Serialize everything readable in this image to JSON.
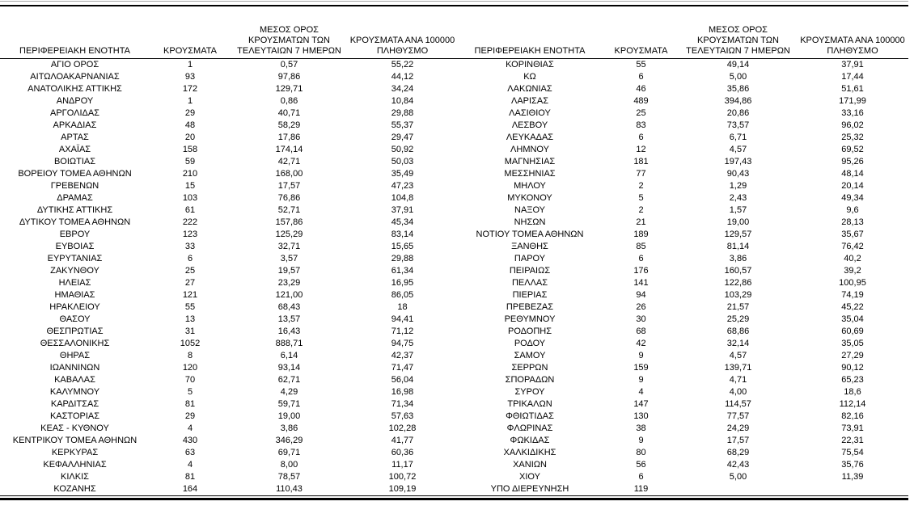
{
  "colors": {
    "background": "#ffffff",
    "text": "#000000",
    "rule_dark": "#000000",
    "rule_light": "#a6a6a6"
  },
  "table": {
    "headers": {
      "region": "ΠΕΡΙΦΕΡΕΙΑΚΗ ΕΝΟΤΗΤΑ",
      "cases": "ΚΡΟΥΣΜΑΤΑ",
      "avg7": "ΜΕΣΟΣ ΟΡΟΣ\nΚΡΟΥΣΜΑΤΩΝ ΤΩΝ\nΤΕΛΕΥΤΑΙΩΝ 7 ΗΜΕΡΩΝ",
      "per100k": "ΚΡΟΥΣΜΑΤΑ ΑΝΑ 100000\nΠΛΗΘΥΣΜΟ"
    },
    "left_rows": [
      {
        "region": "ΑΓΙΟ ΟΡΟΣ",
        "cases": "1",
        "avg7": "0,57",
        "per100k": "55,22"
      },
      {
        "region": "ΑΙΤΩΛΟΑΚΑΡΝΑΝΙΑΣ",
        "cases": "93",
        "avg7": "97,86",
        "per100k": "44,12"
      },
      {
        "region": "ΑΝΑΤΟΛΙΚΗΣ ΑΤΤΙΚΗΣ",
        "cases": "172",
        "avg7": "129,71",
        "per100k": "34,24"
      },
      {
        "region": "ΑΝΔΡΟΥ",
        "cases": "1",
        "avg7": "0,86",
        "per100k": "10,84"
      },
      {
        "region": "ΑΡΓΟΛΙΔΑΣ",
        "cases": "29",
        "avg7": "40,71",
        "per100k": "29,88"
      },
      {
        "region": "ΑΡΚΑΔΙΑΣ",
        "cases": "48",
        "avg7": "58,29",
        "per100k": "55,37"
      },
      {
        "region": "ΑΡΤΑΣ",
        "cases": "20",
        "avg7": "17,86",
        "per100k": "29,47"
      },
      {
        "region": "ΑΧΑΪΑΣ",
        "cases": "158",
        "avg7": "174,14",
        "per100k": "50,92"
      },
      {
        "region": "ΒΟΙΩΤΙΑΣ",
        "cases": "59",
        "avg7": "42,71",
        "per100k": "50,03"
      },
      {
        "region": "ΒΟΡΕΙΟΥ ΤΟΜΕΑ ΑΘΗΝΩΝ",
        "cases": "210",
        "avg7": "168,00",
        "per100k": "35,49"
      },
      {
        "region": "ΓΡΕΒΕΝΩΝ",
        "cases": "15",
        "avg7": "17,57",
        "per100k": "47,23"
      },
      {
        "region": "ΔΡΑΜΑΣ",
        "cases": "103",
        "avg7": "76,86",
        "per100k": "104,8"
      },
      {
        "region": "ΔΥΤΙΚΗΣ ΑΤΤΙΚΗΣ",
        "cases": "61",
        "avg7": "52,71",
        "per100k": "37,91"
      },
      {
        "region": "ΔΥΤΙΚΟΥ ΤΟΜΕΑ ΑΘΗΝΩΝ",
        "cases": "222",
        "avg7": "157,86",
        "per100k": "45,34"
      },
      {
        "region": "ΕΒΡΟΥ",
        "cases": "123",
        "avg7": "125,29",
        "per100k": "83,14"
      },
      {
        "region": "ΕΥΒΟΙΑΣ",
        "cases": "33",
        "avg7": "32,71",
        "per100k": "15,65"
      },
      {
        "region": "ΕΥΡΥΤΑΝΙΑΣ",
        "cases": "6",
        "avg7": "3,57",
        "per100k": "29,88"
      },
      {
        "region": "ΖΑΚΥΝΘΟΥ",
        "cases": "25",
        "avg7": "19,57",
        "per100k": "61,34"
      },
      {
        "region": "ΗΛΕΙΑΣ",
        "cases": "27",
        "avg7": "23,29",
        "per100k": "16,95"
      },
      {
        "region": "ΗΜΑΘΙΑΣ",
        "cases": "121",
        "avg7": "121,00",
        "per100k": "86,05"
      },
      {
        "region": "ΗΡΑΚΛΕΙΟΥ",
        "cases": "55",
        "avg7": "68,43",
        "per100k": "18"
      },
      {
        "region": "ΘΑΣΟΥ",
        "cases": "13",
        "avg7": "13,57",
        "per100k": "94,41"
      },
      {
        "region": "ΘΕΣΠΡΩΤΙΑΣ",
        "cases": "31",
        "avg7": "16,43",
        "per100k": "71,12"
      },
      {
        "region": "ΘΕΣΣΑΛΟΝΙΚΗΣ",
        "cases": "1052",
        "avg7": "888,71",
        "per100k": "94,75"
      },
      {
        "region": "ΘΗΡΑΣ",
        "cases": "8",
        "avg7": "6,14",
        "per100k": "42,37"
      },
      {
        "region": "ΙΩΑΝΝΙΝΩΝ",
        "cases": "120",
        "avg7": "93,14",
        "per100k": "71,47"
      },
      {
        "region": "ΚΑΒΑΛΑΣ",
        "cases": "70",
        "avg7": "62,71",
        "per100k": "56,04"
      },
      {
        "region": "ΚΑΛΥΜΝΟΥ",
        "cases": "5",
        "avg7": "4,29",
        "per100k": "16,98"
      },
      {
        "region": "ΚΑΡΔΙΤΣΑΣ",
        "cases": "81",
        "avg7": "59,71",
        "per100k": "71,34"
      },
      {
        "region": "ΚΑΣΤΟΡΙΑΣ",
        "cases": "29",
        "avg7": "19,00",
        "per100k": "57,63"
      },
      {
        "region": "ΚΕΑΣ - ΚΥΘΝΟΥ",
        "cases": "4",
        "avg7": "3,86",
        "per100k": "102,28"
      },
      {
        "region": "ΚΕΝΤΡΙΚΟΥ ΤΟΜΕΑ ΑΘΗΝΩΝ",
        "cases": "430",
        "avg7": "346,29",
        "per100k": "41,77"
      },
      {
        "region": "ΚΕΡΚΥΡΑΣ",
        "cases": "63",
        "avg7": "69,71",
        "per100k": "60,36"
      },
      {
        "region": "ΚΕΦΑΛΛΗΝΙΑΣ",
        "cases": "4",
        "avg7": "8,00",
        "per100k": "11,17"
      },
      {
        "region": "ΚΙΛΚΙΣ",
        "cases": "81",
        "avg7": "78,57",
        "per100k": "100,72"
      },
      {
        "region": "ΚΟΖΑΝΗΣ",
        "cases": "164",
        "avg7": "110,43",
        "per100k": "109,19"
      }
    ],
    "right_rows": [
      {
        "region": "ΚΟΡΙΝΘΙΑΣ",
        "cases": "55",
        "avg7": "49,14",
        "per100k": "37,91"
      },
      {
        "region": "ΚΩ",
        "cases": "6",
        "avg7": "5,00",
        "per100k": "17,44"
      },
      {
        "region": "ΛΑΚΩΝΙΑΣ",
        "cases": "46",
        "avg7": "35,86",
        "per100k": "51,61"
      },
      {
        "region": "ΛΑΡΙΣΑΣ",
        "cases": "489",
        "avg7": "394,86",
        "per100k": "171,99"
      },
      {
        "region": "ΛΑΣΙΘΙΟΥ",
        "cases": "25",
        "avg7": "20,86",
        "per100k": "33,16"
      },
      {
        "region": "ΛΕΣΒΟΥ",
        "cases": "83",
        "avg7": "73,57",
        "per100k": "96,02"
      },
      {
        "region": "ΛΕΥΚΑΔΑΣ",
        "cases": "6",
        "avg7": "6,71",
        "per100k": "25,32"
      },
      {
        "region": "ΛΗΜΝΟΥ",
        "cases": "12",
        "avg7": "4,57",
        "per100k": "69,52"
      },
      {
        "region": "ΜΑΓΝΗΣΙΑΣ",
        "cases": "181",
        "avg7": "197,43",
        "per100k": "95,26"
      },
      {
        "region": "ΜΕΣΣΗΝΙΑΣ",
        "cases": "77",
        "avg7": "90,43",
        "per100k": "48,14"
      },
      {
        "region": "ΜΗΛΟΥ",
        "cases": "2",
        "avg7": "1,29",
        "per100k": "20,14"
      },
      {
        "region": "ΜΥΚΟΝΟΥ",
        "cases": "5",
        "avg7": "2,43",
        "per100k": "49,34"
      },
      {
        "region": "ΝΑΞΟΥ",
        "cases": "2",
        "avg7": "1,57",
        "per100k": "9,6"
      },
      {
        "region": "ΝΗΣΩΝ",
        "cases": "21",
        "avg7": "19,00",
        "per100k": "28,13"
      },
      {
        "region": "ΝΟΤΙΟΥ ΤΟΜΕΑ ΑΘΗΝΩΝ",
        "cases": "189",
        "avg7": "129,57",
        "per100k": "35,67"
      },
      {
        "region": "ΞΑΝΘΗΣ",
        "cases": "85",
        "avg7": "81,14",
        "per100k": "76,42"
      },
      {
        "region": "ΠΑΡΟΥ",
        "cases": "6",
        "avg7": "3,86",
        "per100k": "40,2"
      },
      {
        "region": "ΠΕΙΡΑΙΩΣ",
        "cases": "176",
        "avg7": "160,57",
        "per100k": "39,2"
      },
      {
        "region": "ΠΕΛΛΑΣ",
        "cases": "141",
        "avg7": "122,86",
        "per100k": "100,95"
      },
      {
        "region": "ΠΙΕΡΙΑΣ",
        "cases": "94",
        "avg7": "103,29",
        "per100k": "74,19"
      },
      {
        "region": "ΠΡΕΒΕΖΑΣ",
        "cases": "26",
        "avg7": "21,57",
        "per100k": "45,22"
      },
      {
        "region": "ΡΕΘΥΜΝΟΥ",
        "cases": "30",
        "avg7": "25,29",
        "per100k": "35,04"
      },
      {
        "region": "ΡΟΔΟΠΗΣ",
        "cases": "68",
        "avg7": "68,86",
        "per100k": "60,69"
      },
      {
        "region": "ΡΟΔΟΥ",
        "cases": "42",
        "avg7": "32,14",
        "per100k": "35,05"
      },
      {
        "region": "ΣΑΜΟΥ",
        "cases": "9",
        "avg7": "4,57",
        "per100k": "27,29"
      },
      {
        "region": "ΣΕΡΡΩΝ",
        "cases": "159",
        "avg7": "139,71",
        "per100k": "90,12"
      },
      {
        "region": "ΣΠΟΡΑΔΩΝ",
        "cases": "9",
        "avg7": "4,71",
        "per100k": "65,23"
      },
      {
        "region": "ΣΥΡΟΥ",
        "cases": "4",
        "avg7": "4,00",
        "per100k": "18,6"
      },
      {
        "region": "ΤΡΙΚΑΛΩΝ",
        "cases": "147",
        "avg7": "114,57",
        "per100k": "112,14"
      },
      {
        "region": "ΦΘΙΩΤΙΔΑΣ",
        "cases": "130",
        "avg7": "77,57",
        "per100k": "82,16"
      },
      {
        "region": "ΦΛΩΡΙΝΑΣ",
        "cases": "38",
        "avg7": "24,29",
        "per100k": "73,91"
      },
      {
        "region": "ΦΩΚΙΔΑΣ",
        "cases": "9",
        "avg7": "17,57",
        "per100k": "22,31"
      },
      {
        "region": "ΧΑΛΚΙΔΙΚΗΣ",
        "cases": "80",
        "avg7": "68,29",
        "per100k": "75,54"
      },
      {
        "region": "ΧΑΝΙΩΝ",
        "cases": "56",
        "avg7": "42,43",
        "per100k": "35,76"
      },
      {
        "region": "ΧΙΟΥ",
        "cases": "6",
        "avg7": "5,00",
        "per100k": "11,39"
      },
      {
        "region": "ΥΠΟ ΔΙΕΡΕΥΝΗΣΗ",
        "cases": "119",
        "avg7": "",
        "per100k": ""
      }
    ]
  }
}
